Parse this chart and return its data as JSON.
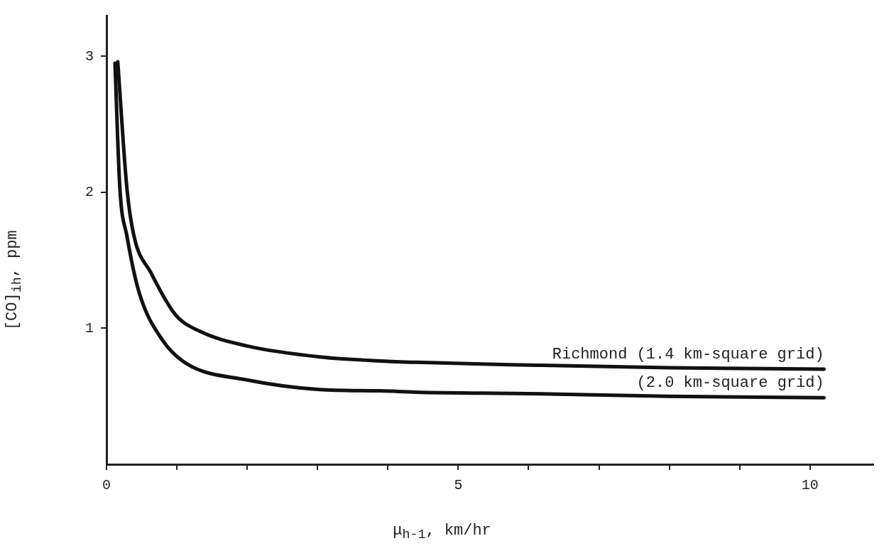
{
  "chart_data": {
    "type": "line",
    "xlabel": "μ$_{h-1}$, km/hr",
    "ylabel": "[CO]$_{ih}$, ppm",
    "series": [
      {
        "name": "Richmond (1.4 km-square grid)",
        "color": "#111111",
        "x": [
          0.16,
          0.29,
          0.39,
          0.63,
          0.98,
          1.32,
          2.0,
          3.03,
          3.9,
          4.4,
          6.0,
          8.0,
          10.2
        ],
        "values": [
          2.96,
          2.03,
          1.68,
          1.41,
          1.1,
          0.98,
          0.87,
          0.79,
          0.76,
          0.75,
          0.73,
          0.71,
          0.7
        ]
      },
      {
        "name": "(2.0 km-square grid)",
        "color": "#111111",
        "x": [
          0.12,
          0.19,
          0.29,
          0.46,
          0.8,
          1.14,
          2.0,
          3.03,
          3.9,
          4.4,
          6.0,
          8.0,
          10.2
        ],
        "values": [
          2.95,
          2.03,
          1.68,
          1.27,
          0.91,
          0.74,
          0.62,
          0.55,
          0.54,
          0.53,
          0.52,
          0.5,
          0.49
        ]
      }
    ],
    "xlim": [
      0,
      10.9
    ],
    "ylim": [
      0,
      3.3
    ],
    "xticks": [
      0,
      {
        "value": 1,
        "label": null
      },
      {
        "value": 2,
        "label": null
      },
      {
        "value": 3,
        "label": null
      },
      {
        "value": 4,
        "label": null
      },
      5,
      {
        "value": 6,
        "label": null
      },
      {
        "value": 7,
        "label": null
      },
      {
        "value": 8,
        "label": null
      },
      {
        "value": 9,
        "label": null
      },
      10
    ],
    "yticks": [
      1,
      2,
      3
    ],
    "grid": false,
    "legend": false,
    "marker": "none",
    "line_style": "solid"
  }
}
